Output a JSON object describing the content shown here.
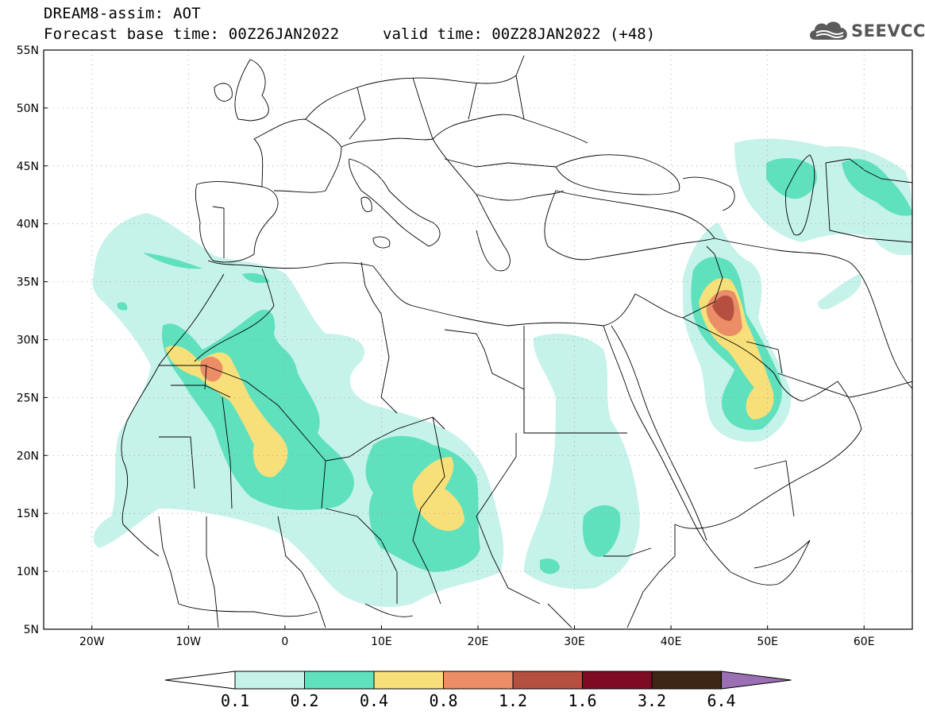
{
  "header": {
    "title_line1": "DREAM8-assim: AOT",
    "title_line2": "Forecast base time: 00Z26JAN2022",
    "valid_time": "valid time: 00Z28JAN2022 (+48)",
    "logo_text": "SEEVCCC"
  },
  "map": {
    "lon_range": [
      -25,
      65
    ],
    "lat_range": [
      5,
      55
    ],
    "lat_ticks": [
      "55N",
      "50N",
      "45N",
      "40N",
      "35N",
      "30N",
      "25N",
      "20N",
      "15N",
      "10N",
      "5N"
    ],
    "lon_ticks": [
      "20W",
      "10W",
      "0",
      "10E",
      "20E",
      "30E",
      "40E",
      "50E",
      "60E"
    ]
  },
  "colorbar": {
    "levels": [
      "0.1",
      "0.2",
      "0.4",
      "0.8",
      "1.2",
      "1.6",
      "3.2",
      "6.4"
    ],
    "colors": [
      "#ffffff",
      "#c5f2e9",
      "#5fe1bd",
      "#f7e07a",
      "#eb8d66",
      "#b55040",
      "#7e0a24",
      "#3d2614",
      "#9b6fb3"
    ]
  }
}
